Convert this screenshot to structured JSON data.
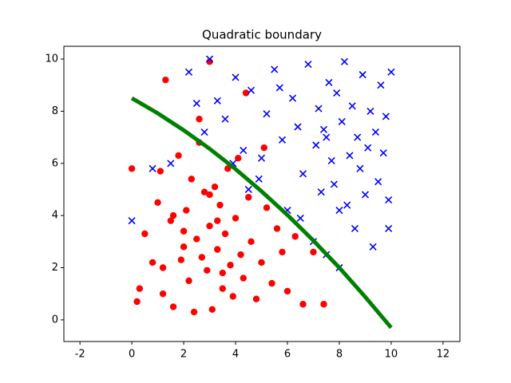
{
  "chart_data": {
    "type": "scatter",
    "title": "Quadratic boundary",
    "xlim": [
      -2.62,
      12.65
    ],
    "ylim": [
      -0.83,
      10.49
    ],
    "xticks": [
      -2,
      0,
      2,
      4,
      6,
      8,
      10,
      12
    ],
    "yticks": [
      0,
      2,
      4,
      6,
      8,
      10
    ],
    "grid": false,
    "series": [
      {
        "kind": "points",
        "marker": "circle",
        "color": "#ff0000",
        "x": [
          0.0,
          0.2,
          0.5,
          0.8,
          1.0,
          1.2,
          1.3,
          1.5,
          1.6,
          1.8,
          2.0,
          2.1,
          2.2,
          2.3,
          2.4,
          2.5,
          2.6,
          2.7,
          2.8,
          2.9,
          3.0,
          3.0,
          3.1,
          3.2,
          3.3,
          3.4,
          3.5,
          3.6,
          3.7,
          3.8,
          3.9,
          4.0,
          4.1,
          4.2,
          4.3,
          4.5,
          4.6,
          4.8,
          5.0,
          5.2,
          5.4,
          5.6,
          5.8,
          6.0,
          6.3,
          6.6,
          7.0,
          7.4,
          0.3,
          1.1,
          1.9,
          2.6,
          3.3,
          4.4,
          5.1,
          1.2,
          3.0,
          2.0,
          3.5,
          1.6
        ],
        "values": [
          5.8,
          0.7,
          3.3,
          2.2,
          4.5,
          1.0,
          9.2,
          3.8,
          0.5,
          6.3,
          2.8,
          4.2,
          1.5,
          5.4,
          0.3,
          3.1,
          6.8,
          2.4,
          4.9,
          1.9,
          9.9,
          3.6,
          0.4,
          5.1,
          2.7,
          4.4,
          1.2,
          3.3,
          5.8,
          2.1,
          0.9,
          3.9,
          6.2,
          2.5,
          1.6,
          4.7,
          3.0,
          0.8,
          2.2,
          4.3,
          1.4,
          3.5,
          2.6,
          1.1,
          3.2,
          0.6,
          2.6,
          0.6,
          1.2,
          5.7,
          2.3,
          7.7,
          3.8,
          8.7,
          6.6,
          2.0,
          4.8,
          3.4,
          1.8,
          4.0
        ]
      },
      {
        "kind": "points",
        "marker": "cross",
        "color": "#0000ff",
        "x": [
          0.0,
          0.8,
          1.5,
          2.2,
          2.5,
          2.8,
          3.0,
          3.3,
          3.6,
          4.0,
          4.3,
          4.6,
          4.9,
          5.2,
          5.5,
          5.8,
          6.0,
          6.2,
          6.4,
          6.6,
          6.8,
          7.0,
          7.1,
          7.2,
          7.3,
          7.4,
          7.5,
          7.6,
          7.7,
          7.8,
          7.9,
          8.0,
          8.1,
          8.2,
          8.3,
          8.4,
          8.5,
          8.6,
          8.7,
          8.8,
          8.9,
          9.0,
          9.1,
          9.2,
          9.3,
          9.4,
          9.5,
          9.6,
          9.7,
          9.8,
          9.9,
          10.0,
          5.0,
          6.5,
          7.5,
          8.0,
          3.9,
          4.5,
          5.7,
          9.9
        ],
        "values": [
          3.8,
          5.8,
          6.0,
          9.5,
          8.3,
          7.2,
          10.0,
          8.4,
          7.7,
          9.3,
          6.5,
          8.8,
          5.4,
          7.9,
          9.6,
          6.9,
          4.2,
          8.5,
          7.4,
          5.6,
          9.8,
          3.0,
          6.7,
          8.1,
          4.9,
          7.3,
          2.5,
          9.1,
          6.1,
          5.2,
          8.7,
          2.0,
          7.6,
          9.9,
          4.4,
          6.3,
          8.2,
          3.5,
          7.0,
          5.8,
          9.4,
          4.8,
          6.6,
          8.0,
          2.8,
          7.2,
          5.3,
          9.0,
          6.4,
          7.8,
          4.6,
          9.5,
          6.2,
          3.9,
          7.0,
          4.2,
          6.0,
          5.0,
          8.9,
          3.5
        ]
      },
      {
        "kind": "line",
        "color": "#008000",
        "x": [
          0,
          1,
          2,
          3,
          4,
          5,
          6,
          7,
          8,
          9,
          10
        ],
        "values": [
          8.5,
          7.92,
          7.27,
          6.56,
          5.78,
          4.93,
          4.02,
          3.04,
          2.0,
          0.88,
          -0.3
        ]
      }
    ]
  }
}
